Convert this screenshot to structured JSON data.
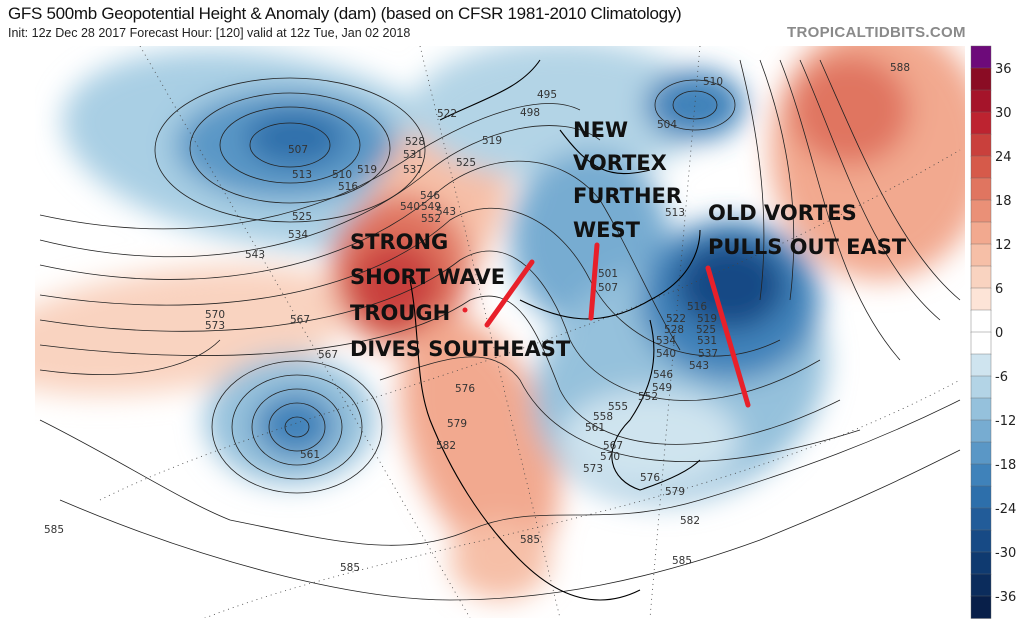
{
  "header": {
    "title": "GFS 500mb Geopotential Height & Anomaly (dam) (based on CFSR 1981-2010 Climatology)",
    "subtitle": "Init: 12z Dec 28 2017   Forecast Hour: [120]   valid at 12z Tue, Jan 02 2018",
    "brand": "TROPICALTIDBITS.COM"
  },
  "annotations": {
    "new_vortex": [
      "NEW",
      "VORTEX",
      "FURTHER",
      "WEST"
    ],
    "short_wave": [
      "STRONG",
      "SHORT WAVE",
      "TROUGH",
      "DIVES SOUTHEAST"
    ],
    "old_vortex": [
      "OLD VORTES",
      "PULLS OUT EAST"
    ],
    "arrow_color": "#e8202a"
  },
  "contour_labels": [
    "507",
    "513",
    "510",
    "519",
    "516",
    "525",
    "534",
    "543",
    "522",
    "528",
    "531",
    "537",
    "540",
    "546",
    "549",
    "552",
    "543",
    "525",
    "519",
    "495",
    "498",
    "504",
    "510",
    "513",
    "501",
    "507",
    "516",
    "522",
    "519",
    "528",
    "525",
    "534",
    "531",
    "540",
    "537",
    "543",
    "546",
    "549",
    "552",
    "555",
    "558",
    "561",
    "567",
    "570",
    "573",
    "576",
    "579",
    "582",
    "585",
    "588",
    "570",
    "573",
    "567",
    "567",
    "561",
    "576",
    "579",
    "582",
    "585",
    "585",
    "585"
  ],
  "colorbar": {
    "labels": [
      "36",
      "30",
      "24",
      "18",
      "12",
      "6",
      "0",
      "-6",
      "-12",
      "-18",
      "-24",
      "-30",
      "-36"
    ],
    "colors": [
      "#6d0a7a",
      "#8a0c24",
      "#a5142a",
      "#bd2330",
      "#c9403c",
      "#d65a4a",
      "#e07560",
      "#ea9077",
      "#f2a98f",
      "#f6bfa7",
      "#f9d3c0",
      "#fde4d7",
      "#ffffff",
      "#ffffff",
      "#cfe4ef",
      "#b3d4e6",
      "#95c1dc",
      "#77acd1",
      "#5a97c6",
      "#3f82ba",
      "#2d6fab",
      "#225c99",
      "#174a85",
      "#0f3a70",
      "#0b2c5c",
      "#081f49"
    ]
  }
}
